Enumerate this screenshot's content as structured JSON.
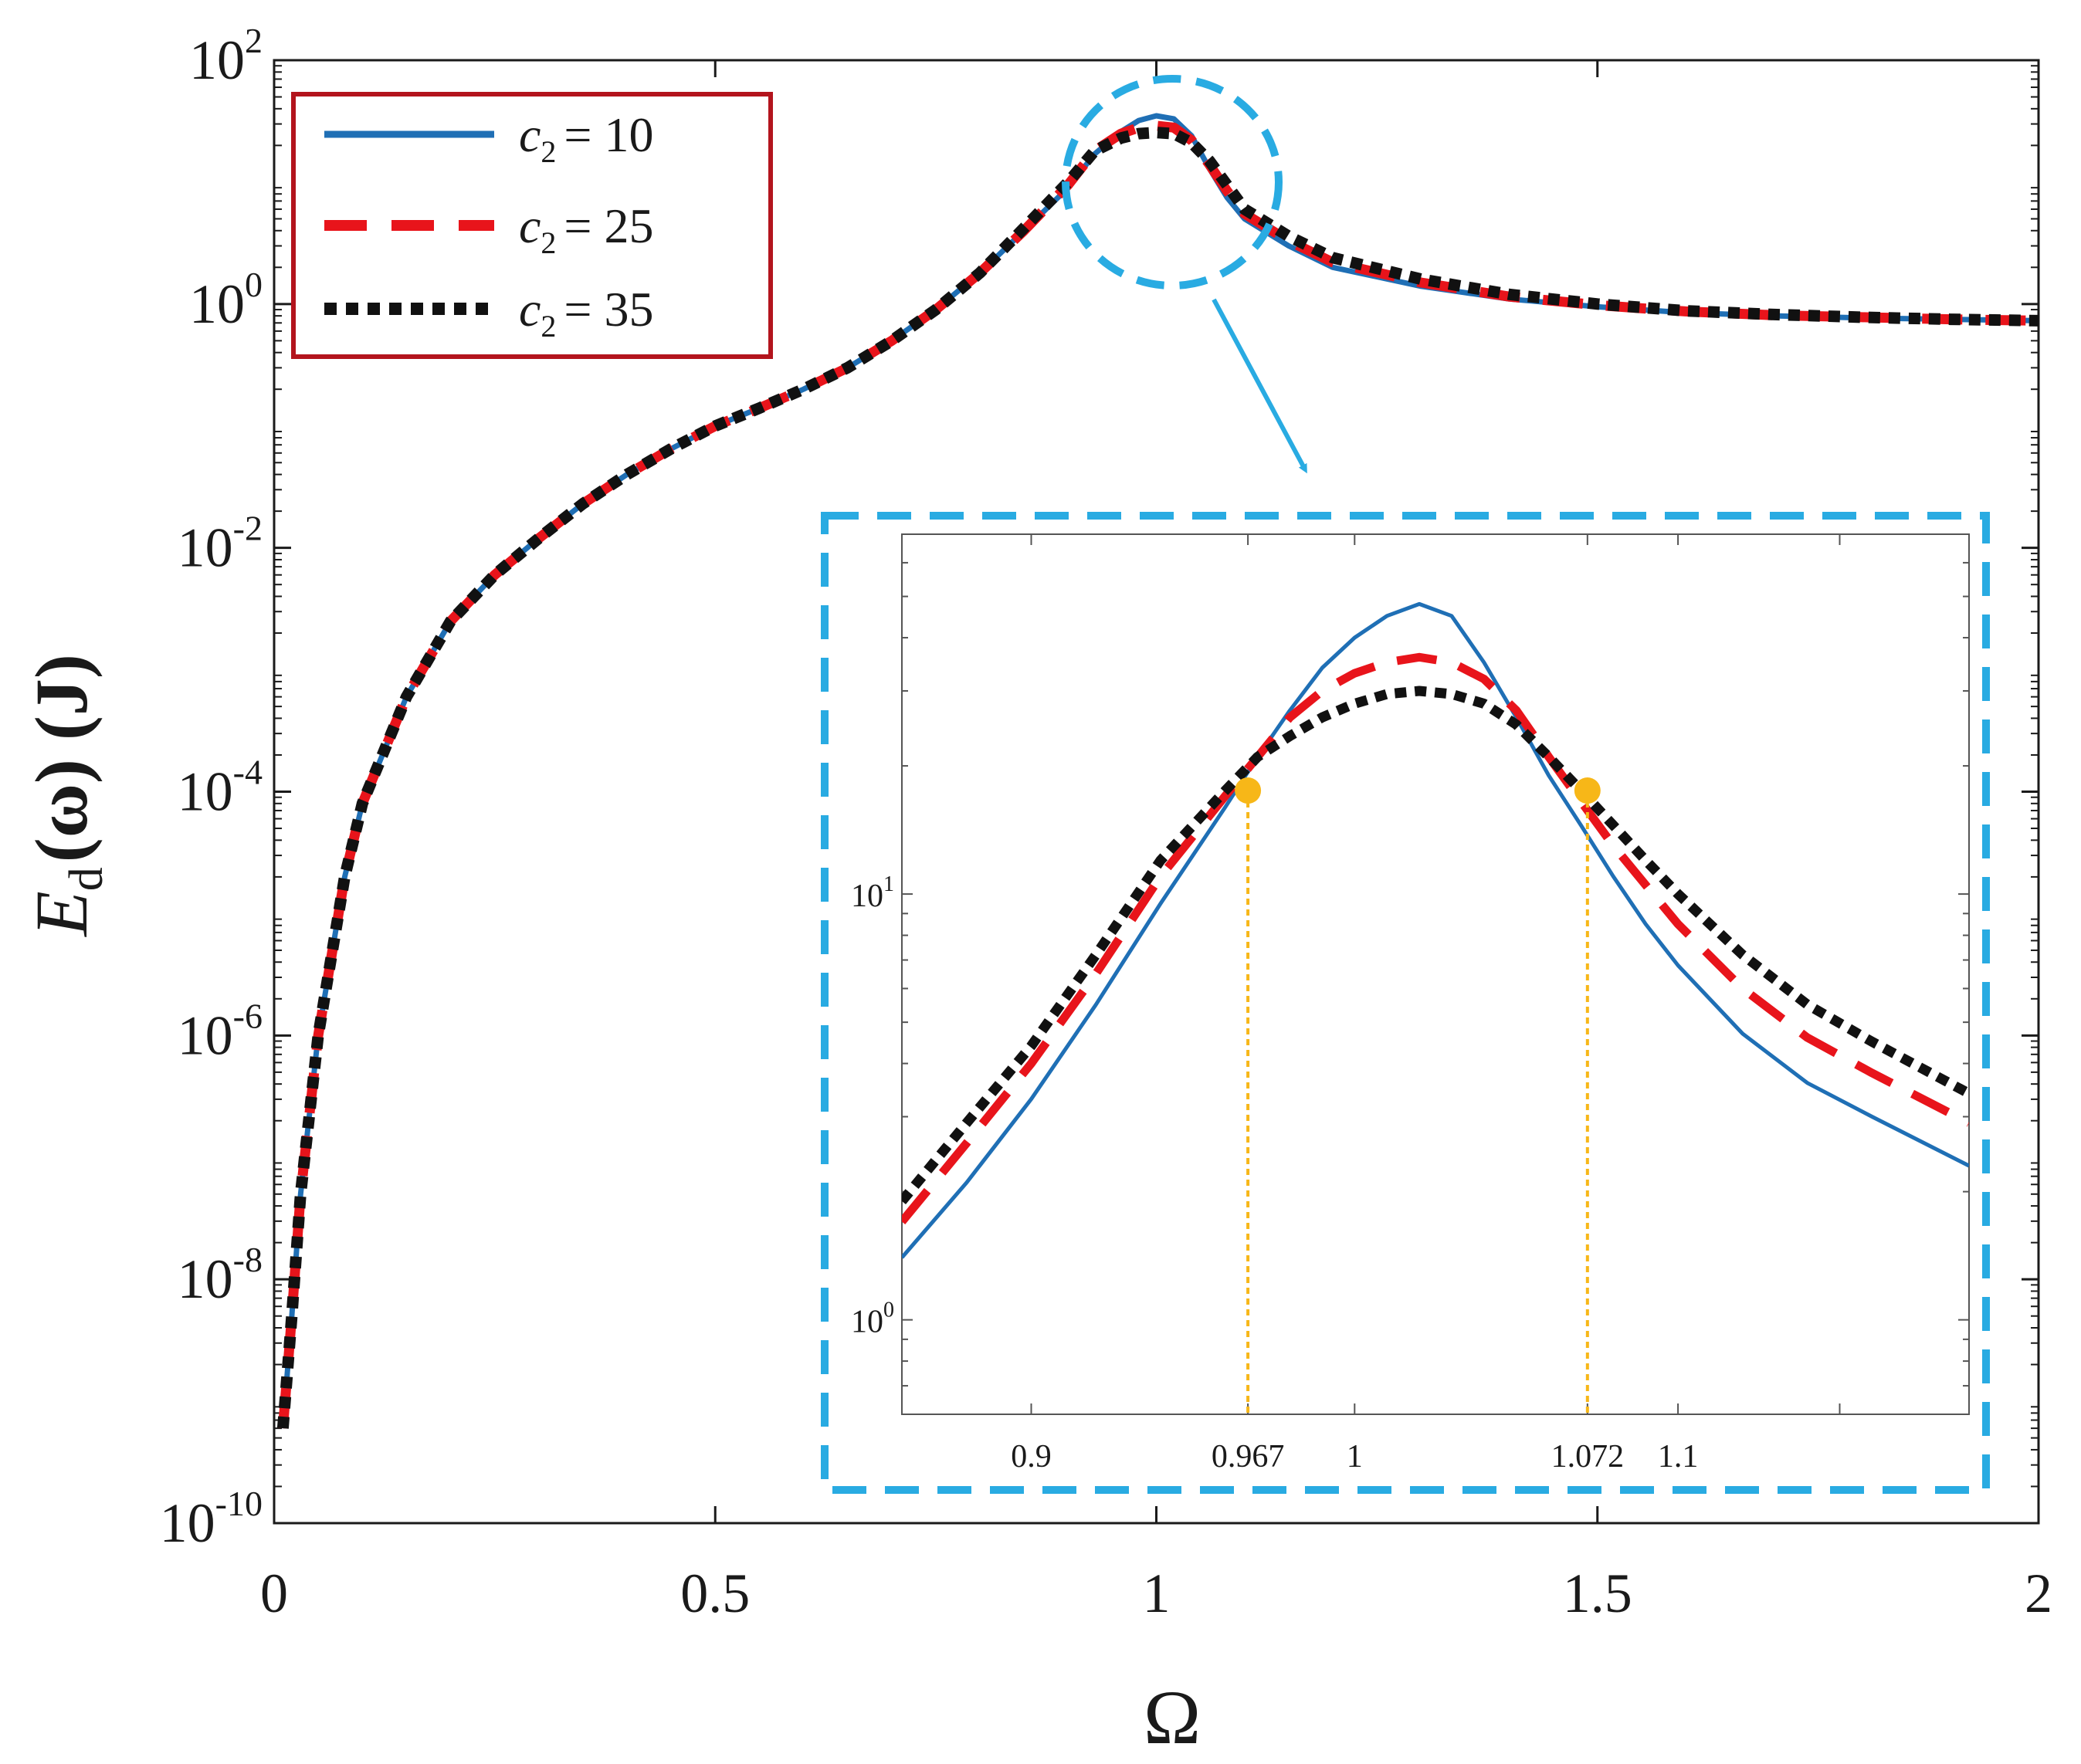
{
  "chart_data": {
    "type": "line",
    "ylabel_parts": {
      "E": "E",
      "sub": "d",
      "rest": "(ω) (J)"
    },
    "xlabel": "Ω",
    "xlim": [
      0,
      2
    ],
    "ylim": [
      1e-10,
      100
    ],
    "yscale": "log",
    "x_ticks": [
      {
        "value": 0,
        "label": "0"
      },
      {
        "value": 0.5,
        "label": "0.5"
      },
      {
        "value": 1,
        "label": "1"
      },
      {
        "value": 1.5,
        "label": "1.5"
      },
      {
        "value": 2,
        "label": "2"
      }
    ],
    "y_ticks": [
      {
        "value": 1e-10,
        "base": "10",
        "exp": "-10"
      },
      {
        "value": 1e-08,
        "base": "10",
        "exp": "-8"
      },
      {
        "value": 1e-06,
        "base": "10",
        "exp": "-6"
      },
      {
        "value": 0.0001,
        "base": "10",
        "exp": "-4"
      },
      {
        "value": 0.01,
        "base": "10",
        "exp": "-2"
      },
      {
        "value": 1,
        "base": "10",
        "exp": "0"
      },
      {
        "value": 100,
        "base": "10",
        "exp": "2"
      }
    ],
    "legend": {
      "position": "top-left",
      "entries": [
        {
          "var": "c",
          "sub": "2",
          "eq": "= 10"
        },
        {
          "var": "c",
          "sub": "2",
          "eq": "= 25"
        },
        {
          "var": "c",
          "sub": "2",
          "eq": "= 35"
        }
      ]
    },
    "series": [
      {
        "style": "solid",
        "color": "#1f6fb5",
        "x": [
          0.01,
          0.02,
          0.03,
          0.05,
          0.08,
          0.1,
          0.15,
          0.2,
          0.25,
          0.3,
          0.35,
          0.4,
          0.45,
          0.5,
          0.55,
          0.6,
          0.65,
          0.7,
          0.75,
          0.8,
          0.85,
          0.9,
          0.93,
          0.96,
          0.98,
          1.0,
          1.02,
          1.04,
          1.06,
          1.08,
          1.1,
          1.15,
          1.2,
          1.3,
          1.4,
          1.5,
          1.6,
          1.7,
          1.8,
          1.9,
          2.0
        ],
        "y": [
          6e-10,
          5e-09,
          5e-08,
          1e-06,
          2e-05,
          8e-05,
          0.0006,
          0.0025,
          0.006,
          0.012,
          0.023,
          0.04,
          0.065,
          0.1,
          0.14,
          0.2,
          0.3,
          0.5,
          0.9,
          1.8,
          4,
          9,
          17,
          26,
          32,
          35,
          33,
          24,
          13,
          7.5,
          5,
          3,
          2,
          1.4,
          1.1,
          0.95,
          0.85,
          0.8,
          0.77,
          0.75,
          0.73
        ]
      },
      {
        "style": "dashed",
        "color": "#e8141b",
        "x": [
          0.01,
          0.02,
          0.03,
          0.05,
          0.08,
          0.1,
          0.15,
          0.2,
          0.25,
          0.3,
          0.35,
          0.4,
          0.45,
          0.5,
          0.55,
          0.6,
          0.65,
          0.7,
          0.75,
          0.8,
          0.85,
          0.9,
          0.93,
          0.96,
          0.98,
          1.0,
          1.02,
          1.04,
          1.06,
          1.08,
          1.1,
          1.15,
          1.2,
          1.3,
          1.4,
          1.5,
          1.6,
          1.7,
          1.8,
          1.9,
          2.0
        ],
        "y": [
          6e-10,
          5e-09,
          5e-08,
          1e-06,
          2e-05,
          8e-05,
          0.0006,
          0.0025,
          0.006,
          0.012,
          0.023,
          0.04,
          0.065,
          0.1,
          0.14,
          0.2,
          0.3,
          0.5,
          0.9,
          1.8,
          4,
          9.5,
          18,
          25,
          28,
          29,
          28,
          22,
          14,
          8.5,
          5.5,
          3.3,
          2.2,
          1.5,
          1.15,
          0.98,
          0.87,
          0.81,
          0.78,
          0.75,
          0.73
        ]
      },
      {
        "style": "dotted",
        "color": "#111111",
        "x": [
          0.01,
          0.02,
          0.03,
          0.05,
          0.08,
          0.1,
          0.15,
          0.2,
          0.25,
          0.3,
          0.35,
          0.4,
          0.45,
          0.5,
          0.55,
          0.6,
          0.65,
          0.7,
          0.75,
          0.8,
          0.85,
          0.9,
          0.93,
          0.96,
          0.98,
          1.0,
          1.02,
          1.04,
          1.06,
          1.08,
          1.1,
          1.15,
          1.2,
          1.3,
          1.4,
          1.5,
          1.6,
          1.7,
          1.8,
          1.9,
          2.0
        ],
        "y": [
          6e-10,
          5e-09,
          5e-08,
          1e-06,
          2e-05,
          8e-05,
          0.0006,
          0.0025,
          0.006,
          0.012,
          0.023,
          0.04,
          0.065,
          0.1,
          0.14,
          0.2,
          0.3,
          0.5,
          0.9,
          1.8,
          4.2,
          10,
          18,
          23,
          25,
          25.5,
          25,
          21,
          15,
          9.5,
          6,
          3.6,
          2.4,
          1.6,
          1.2,
          1.0,
          0.88,
          0.82,
          0.78,
          0.75,
          0.73
        ]
      }
    ],
    "inset": {
      "xlim": [
        0.86,
        1.19
      ],
      "ylim": [
        0.6,
        70
      ],
      "yscale": "log",
      "x_ticks": [
        {
          "value": 0.9,
          "label": "0.9"
        },
        {
          "value": 0.967,
          "label": "0.967"
        },
        {
          "value": 1.0,
          "label": "1"
        },
        {
          "value": 1.072,
          "label": "1.072"
        },
        {
          "value": 1.1,
          "label": "1.1"
        },
        {
          "value": 1.15,
          "label": ""
        }
      ],
      "y_ticks": [
        {
          "value": 1,
          "base": "10",
          "exp": "0"
        },
        {
          "value": 10,
          "base": "10",
          "exp": "1"
        }
      ],
      "crossings": [
        {
          "x": 0.967,
          "y": 17.5
        },
        {
          "x": 1.072,
          "y": 17.5
        }
      ],
      "marker_color": "#f7b718",
      "frame_color": "#29abe2",
      "series": [
        {
          "style": "solid",
          "color": "#1f6fb5",
          "x": [
            0.86,
            0.88,
            0.9,
            0.92,
            0.94,
            0.96,
            0.97,
            0.98,
            0.99,
            1.0,
            1.01,
            1.02,
            1.03,
            1.04,
            1.05,
            1.06,
            1.07,
            1.08,
            1.09,
            1.1,
            1.12,
            1.14,
            1.16,
            1.19
          ],
          "y": [
            1.4,
            2.1,
            3.3,
            5.5,
            9.5,
            16,
            21,
            27,
            34,
            40,
            45,
            48,
            45,
            35,
            26,
            19,
            14.5,
            11,
            8.5,
            6.8,
            4.7,
            3.6,
            3.0,
            2.3
          ]
        },
        {
          "style": "dashed",
          "color": "#e8141b",
          "x": [
            0.86,
            0.88,
            0.9,
            0.92,
            0.94,
            0.96,
            0.97,
            0.98,
            0.99,
            1.0,
            1.01,
            1.02,
            1.03,
            1.04,
            1.05,
            1.06,
            1.07,
            1.08,
            1.09,
            1.1,
            1.12,
            1.14,
            1.16,
            1.19
          ],
          "y": [
            1.7,
            2.6,
            4.0,
            6.5,
            11,
            17,
            21,
            26,
            30,
            33,
            35,
            36,
            35,
            32,
            27,
            21,
            16.5,
            13,
            10.5,
            8.5,
            6,
            4.6,
            3.8,
            2.9
          ]
        },
        {
          "style": "dotted",
          "color": "#111111",
          "x": [
            0.86,
            0.88,
            0.9,
            0.92,
            0.94,
            0.96,
            0.97,
            0.98,
            0.99,
            1.0,
            1.01,
            1.02,
            1.03,
            1.04,
            1.05,
            1.06,
            1.07,
            1.08,
            1.09,
            1.1,
            1.12,
            1.14,
            1.16,
            1.19
          ],
          "y": [
            1.9,
            2.9,
            4.4,
            7.2,
            12,
            17.5,
            21,
            23.5,
            26,
            28,
            29.5,
            30,
            29.5,
            28,
            25,
            21,
            17.5,
            14.5,
            12,
            10,
            7.2,
            5.5,
            4.5,
            3.4
          ]
        }
      ]
    }
  }
}
